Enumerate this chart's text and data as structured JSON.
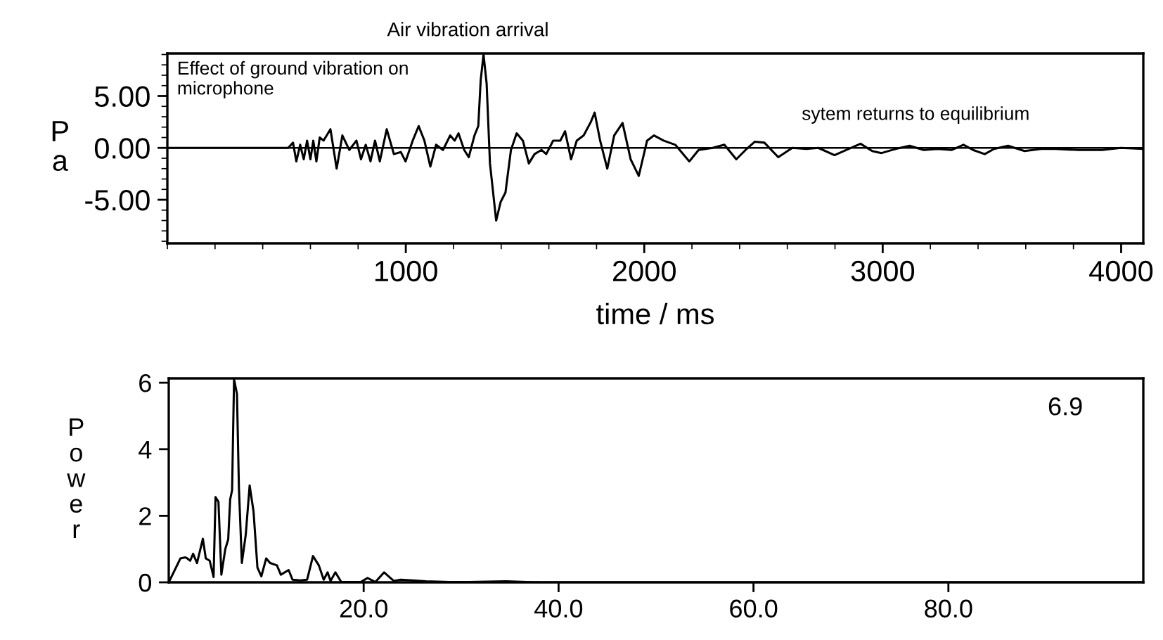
{
  "chart_data": [
    {
      "type": "line",
      "xlabel": "time / ms",
      "ylabel": "Pa",
      "annotations": [
        "Air vibration arrival",
        "Effect of ground vibration on microphone",
        "sytem returns to equilibrium"
      ],
      "xlim": [
        0,
        4093
      ],
      "xticks": [
        1000,
        2000,
        3000,
        4000
      ],
      "ylim": [
        -9.2,
        9.1
      ],
      "yticks": [
        {
          "value": 5,
          "label": "5.00"
        },
        {
          "value": 0,
          "label": "0.00"
        },
        {
          "value": -5,
          "label": "-5.00"
        }
      ],
      "ref_lines": [
        {
          "axis": "y",
          "value": 0,
          "color": "#000000"
        }
      ],
      "grid": false,
      "legend": false,
      "series": [
        {
          "color": "#000000",
          "x": [
            0,
            507,
            527,
            541,
            557,
            572,
            586,
            600,
            612,
            625,
            639,
            655,
            684,
            710,
            734,
            763,
            793,
            812,
            832,
            852,
            871,
            891,
            920,
            950,
            979,
            999,
            1029,
            1054,
            1078,
            1103,
            1127,
            1156,
            1186,
            1205,
            1221,
            1245,
            1264,
            1288,
            1304,
            1314,
            1326,
            1339,
            1353,
            1379,
            1398,
            1418,
            1441,
            1465,
            1491,
            1516,
            1540,
            1569,
            1589,
            1618,
            1648,
            1668,
            1693,
            1717,
            1746,
            1776,
            1792,
            1815,
            1845,
            1874,
            1909,
            1943,
            1977,
            2012,
            2041,
            2081,
            2130,
            2189,
            2228,
            2287,
            2336,
            2386,
            2425,
            2464,
            2504,
            2562,
            2621,
            2680,
            2730,
            2798,
            2848,
            2907,
            2956,
            2995,
            3054,
            3113,
            3172,
            3231,
            3290,
            3339,
            3379,
            3428,
            3467,
            3526,
            3595,
            3664,
            3723,
            3821,
            3920,
            3999,
            4093
          ],
          "values": [
            0,
            0,
            0.5,
            -1.3,
            0.3,
            -1.1,
            0.7,
            -1.1,
            0.7,
            -1.3,
            1.0,
            0.7,
            1.8,
            -2.0,
            1.2,
            -0.2,
            0.7,
            -1.1,
            0.3,
            -1.3,
            0.7,
            -1.3,
            1.8,
            -0.6,
            -0.4,
            -1.3,
            0.7,
            2.1,
            0.7,
            -1.8,
            0.3,
            -0.2,
            1.2,
            0.7,
            1.4,
            -0.2,
            -0.9,
            1.2,
            2.1,
            6.5,
            9.0,
            6.2,
            -1.5,
            -7.0,
            -5.2,
            -4.3,
            -0.2,
            1.4,
            0.7,
            -1.5,
            -0.6,
            -0.2,
            -0.6,
            0.7,
            0.7,
            1.6,
            -1.1,
            0.7,
            1.2,
            2.5,
            3.4,
            0.7,
            -2.0,
            1.2,
            2.4,
            -1.1,
            -2.7,
            0.7,
            1.2,
            0.7,
            0.3,
            -1.3,
            -0.2,
            0.0,
            0.3,
            -1.1,
            -0.2,
            0.6,
            0.5,
            -0.9,
            0.0,
            -0.1,
            0.0,
            -0.7,
            -0.2,
            0.4,
            -0.3,
            -0.5,
            -0.1,
            0.2,
            -0.2,
            -0.1,
            -0.2,
            0.3,
            -0.2,
            -0.6,
            -0.1,
            0.2,
            -0.3,
            -0.1,
            -0.1,
            -0.2,
            -0.2,
            0.0,
            -0.1
          ]
        }
      ]
    },
    {
      "type": "line",
      "ylabel": "Power",
      "annotations": [
        "6.9"
      ],
      "xlim": [
        0,
        100
      ],
      "xticks": [
        {
          "value": 20,
          "label": "20.0"
        },
        {
          "value": 40,
          "label": "40.0"
        },
        {
          "value": 60,
          "label": "60.0"
        },
        {
          "value": 80,
          "label": "80.0"
        }
      ],
      "ylim": [
        0,
        6.13
      ],
      "yticks": [
        0,
        2,
        4,
        6
      ],
      "grid": false,
      "legend": false,
      "series": [
        {
          "color": "#000000",
          "x": [
            0,
            1.2,
            1.7,
            1.9,
            2.2,
            2.5,
            2.9,
            3.5,
            3.8,
            4.2,
            4.6,
            4.8,
            5.1,
            5.4,
            5.8,
            6.1,
            6.3,
            6.5,
            6.7,
            7.0,
            7.2,
            7.5,
            7.9,
            8.3,
            8.7,
            9.1,
            9.5,
            10.0,
            10.4,
            11.1,
            11.5,
            12.3,
            12.7,
            13.5,
            14.2,
            14.8,
            15.4,
            15.9,
            16.3,
            16.6,
            17.1,
            17.7,
            19.7,
            20.4,
            21.2,
            22.1,
            23.1,
            23.8,
            25.0,
            26.4,
            28.8,
            30.8,
            34.6,
            38.0,
            100
          ],
          "values": [
            0,
            0.72,
            0.75,
            0.72,
            0.65,
            0.86,
            0.58,
            1.31,
            0.72,
            0.65,
            0.16,
            2.56,
            2.42,
            0.23,
            1.0,
            1.29,
            2.49,
            2.77,
            6.1,
            5.66,
            2.84,
            0.58,
            1.43,
            2.91,
            2.13,
            0.44,
            0.18,
            0.72,
            0.58,
            0.51,
            0.23,
            0.37,
            0.08,
            0.06,
            0.08,
            0.79,
            0.51,
            0.08,
            0.3,
            0.04,
            0.3,
            0.01,
            0.01,
            0.13,
            0.01,
            0.3,
            0.04,
            0.08,
            0.06,
            0.03,
            0.01,
            0.01,
            0.03,
            0,
            0
          ]
        }
      ]
    }
  ]
}
